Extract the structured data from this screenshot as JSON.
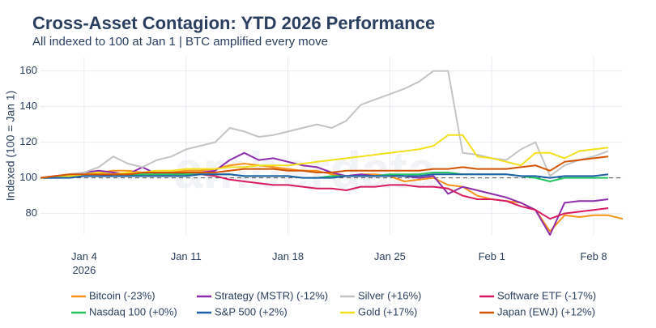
{
  "chart_data": {
    "type": "line",
    "title": "Cross-Asset Contagion: YTD 2026 Performance",
    "subtitle": "All indexed to 100 at Jan 1 | BTC amplified every move",
    "y_label": "Indexed (100 = Jan 1)",
    "watermark": "amberdata",
    "x": [
      "2026-01-01",
      "2026-01-02",
      "2026-01-03",
      "2026-01-04",
      "2026-01-05",
      "2026-01-06",
      "2026-01-07",
      "2026-01-08",
      "2026-01-09",
      "2026-01-10",
      "2026-01-11",
      "2026-01-12",
      "2026-01-13",
      "2026-01-14",
      "2026-01-15",
      "2026-01-16",
      "2026-01-17",
      "2026-01-18",
      "2026-01-19",
      "2026-01-20",
      "2026-01-21",
      "2026-01-22",
      "2026-01-23",
      "2026-01-24",
      "2026-01-25",
      "2026-01-26",
      "2026-01-27",
      "2026-01-28",
      "2026-01-29",
      "2026-01-30",
      "2026-01-31",
      "2026-02-01",
      "2026-02-02",
      "2026-02-03",
      "2026-02-04",
      "2026-02-05",
      "2026-02-06",
      "2026-02-07",
      "2026-02-08",
      "2026-02-09",
      "2026-02-10"
    ],
    "xlim": [
      "2026-01-01",
      "2026-02-10"
    ],
    "xticks": [
      {
        "value": "2026-01-04",
        "label": "Jan 4\n2026"
      },
      {
        "value": "2026-01-11",
        "label": "Jan 11"
      },
      {
        "value": "2026-01-18",
        "label": "Jan 18"
      },
      {
        "value": "2026-01-25",
        "label": "Jan 25"
      },
      {
        "value": "2026-02-01",
        "label": "Feb 1"
      },
      {
        "value": "2026-02-08",
        "label": "Feb 8"
      }
    ],
    "ylim": [
      68,
      168
    ],
    "yticks": [
      80,
      100,
      120,
      140,
      160
    ],
    "grid": true,
    "hline": 100,
    "legend": "bottom",
    "series": [
      {
        "name": "Bitcoin (-23%)",
        "color": "#f7931a",
        "values": [
          100,
          101,
          102,
          102,
          103,
          104,
          104,
          103,
          103,
          103,
          104,
          104,
          105,
          107,
          108,
          107,
          106,
          105,
          104,
          104,
          102,
          101,
          102,
          102,
          101,
          98,
          99,
          100,
          96,
          95,
          90,
          88,
          87,
          86,
          82,
          70,
          79,
          78,
          79,
          79,
          77
        ]
      },
      {
        "name": "Strategy (MSTR) (-12%)",
        "color": "#8e2dab",
        "values": [
          100,
          101,
          102,
          103,
          104,
          103,
          102,
          106,
          102,
          102,
          103,
          103,
          104,
          110,
          114,
          110,
          111,
          109,
          107,
          106,
          103,
          101,
          102,
          101,
          102,
          101,
          100,
          101,
          91,
          95,
          93,
          91,
          89,
          86,
          82,
          68,
          86,
          87,
          87,
          88,
          null
        ]
      },
      {
        "name": "Silver (+16%)",
        "color": "#c4c4c4",
        "values": [
          100,
          101,
          102,
          103,
          106,
          112,
          108,
          106,
          110,
          112,
          116,
          118,
          120,
          128,
          126,
          123,
          124,
          126,
          128,
          130,
          128,
          132,
          141,
          144,
          147,
          150,
          154,
          160,
          160,
          114,
          113,
          111,
          110,
          116,
          120,
          101,
          107,
          110,
          112,
          115,
          null
        ]
      },
      {
        "name": "Software ETF (-17%)",
        "color": "#d81b60",
        "values": [
          100,
          101,
          101,
          101,
          101,
          102,
          102,
          102,
          102,
          102,
          102,
          102,
          101,
          99,
          98,
          97,
          96,
          96,
          95,
          94,
          94,
          93,
          95,
          95,
          96,
          96,
          95,
          95,
          94,
          90,
          88,
          88,
          87,
          84,
          82,
          77,
          80,
          81,
          82,
          83,
          null
        ]
      },
      {
        "name": "Nasdaq 100 (+0%)",
        "color": "#22c55e",
        "values": [
          100,
          100,
          101,
          101,
          101,
          101,
          101,
          102,
          102,
          102,
          102,
          102,
          102,
          102,
          101,
          101,
          101,
          101,
          100,
          100,
          101,
          101,
          101,
          101,
          102,
          102,
          102,
          103,
          103,
          102,
          102,
          102,
          102,
          101,
          100,
          98,
          100,
          100,
          100,
          100,
          null
        ]
      },
      {
        "name": "S&P 500 (+2%)",
        "color": "#1f5fa8",
        "values": [
          100,
          100,
          100,
          101,
          101,
          101,
          101,
          101,
          101,
          101,
          101,
          102,
          102,
          102,
          101,
          101,
          101,
          101,
          100,
          100,
          100,
          101,
          101,
          101,
          101,
          101,
          101,
          102,
          102,
          102,
          102,
          102,
          102,
          101,
          101,
          100,
          101,
          101,
          101,
          102,
          null
        ]
      },
      {
        "name": "Gold (+17%)",
        "color": "#f2e01c",
        "values": [
          100,
          101,
          101,
          102,
          103,
          102,
          103,
          103,
          104,
          104,
          105,
          105,
          105,
          106,
          106,
          107,
          107,
          107,
          108,
          109,
          110,
          111,
          112,
          113,
          114,
          115,
          116,
          118,
          124,
          124,
          112,
          111,
          109,
          107,
          114,
          114,
          111,
          115,
          116,
          117,
          null
        ]
      },
      {
        "name": "Japan (EWJ) (+12%)",
        "color": "#d35400",
        "values": [
          100,
          101,
          102,
          102,
          102,
          102,
          102,
          103,
          103,
          103,
          103,
          103,
          103,
          104,
          105,
          105,
          105,
          104,
          104,
          103,
          103,
          104,
          104,
          104,
          104,
          104,
          104,
          105,
          105,
          106,
          105,
          105,
          105,
          106,
          107,
          104,
          109,
          110,
          111,
          112,
          null
        ]
      }
    ]
  }
}
